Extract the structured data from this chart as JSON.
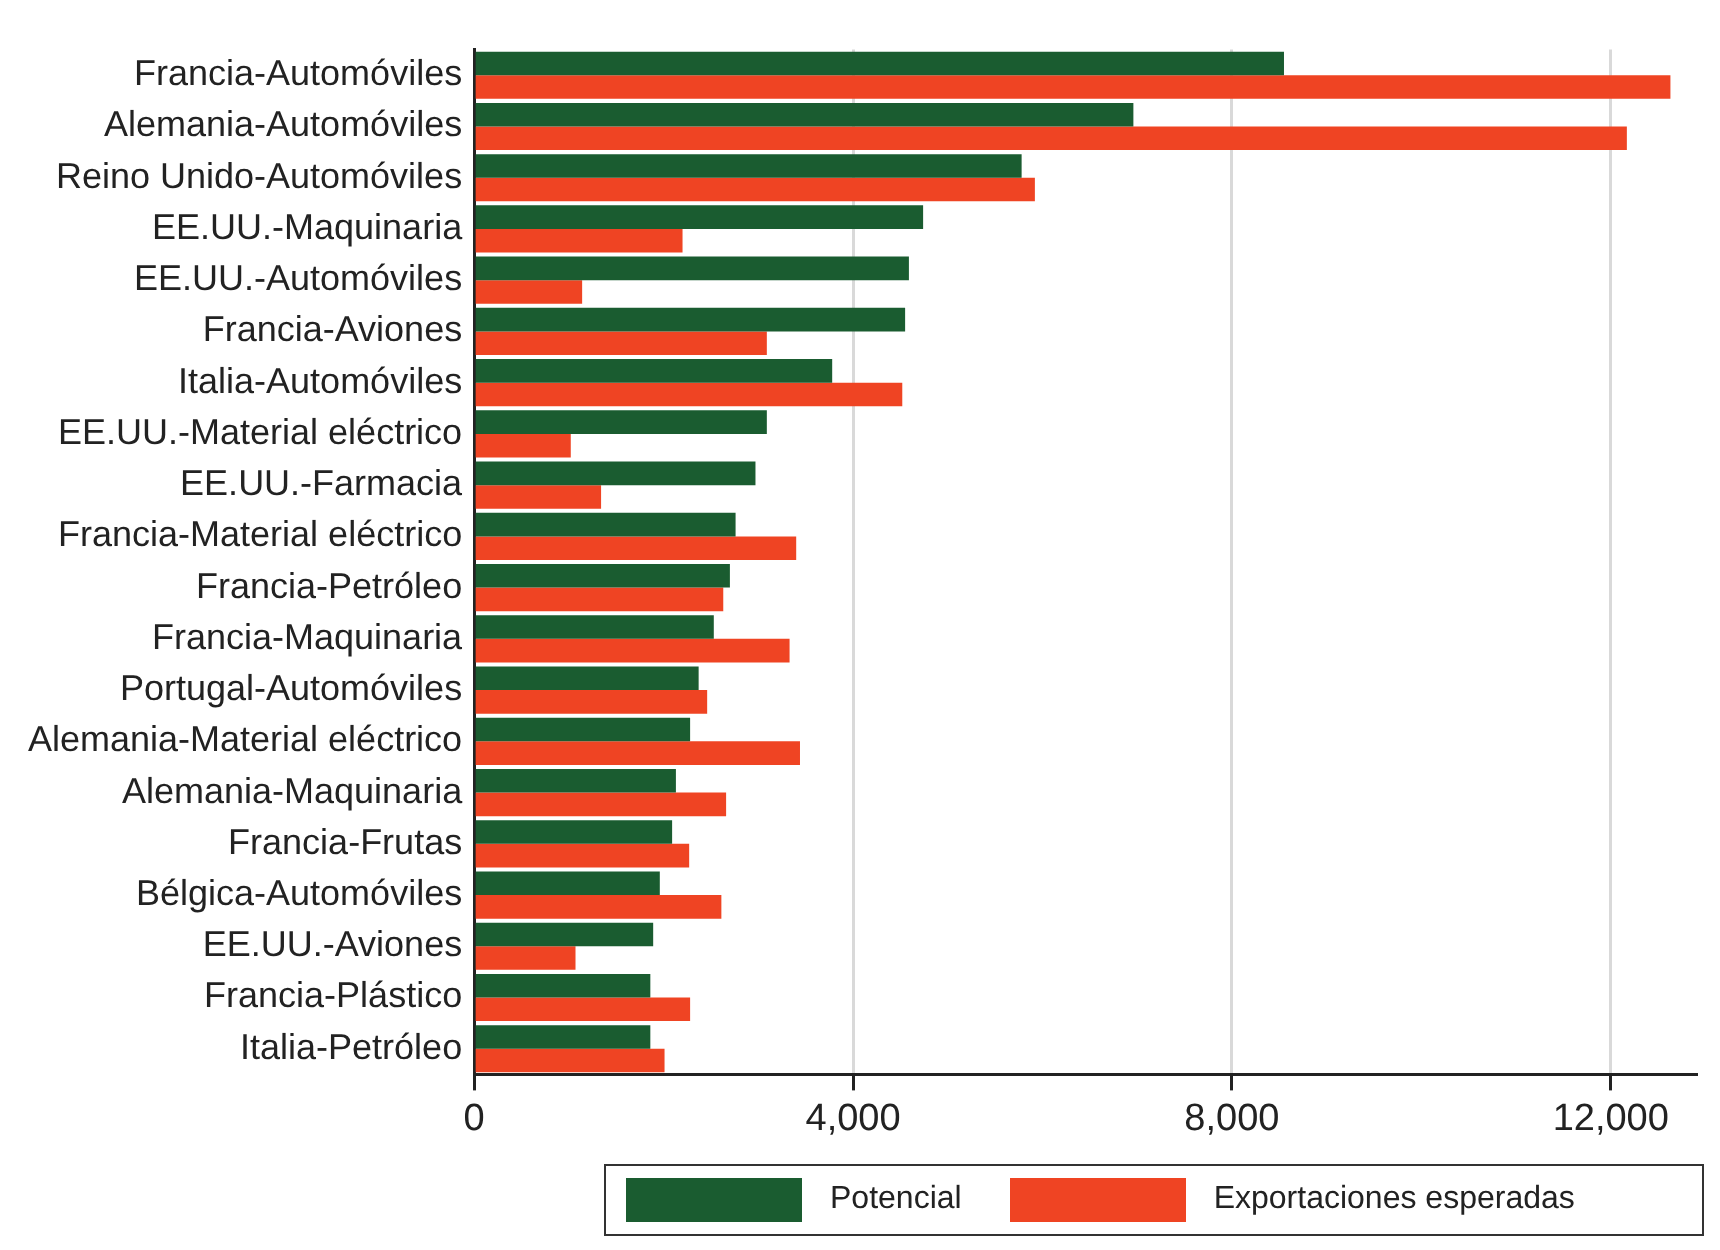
{
  "chart_data": {
    "type": "bar",
    "orientation": "horizontal",
    "categories": [
      "Francia-Automóviles",
      "Alemania-Automóviles",
      "Reino Unido-Automóviles",
      "EE.UU.-Maquinaria",
      "EE.UU.-Automóviles",
      "Francia-Aviones",
      "Italia-Automóviles",
      "EE.UU.-Material eléctrico",
      "EE.UU.-Farmacia",
      "Francia-Material eléctrico",
      "Francia-Petróleo",
      "Francia-Maquinaria",
      "Portugal-Automóviles",
      "Alemania-Material eléctrico",
      "Alemania-Maquinaria",
      "Francia-Frutas",
      "Bélgica-Automóviles",
      "EE.UU.-Aviones",
      "Francia-Plástico",
      "Italia-Petróleo"
    ],
    "series": [
      {
        "name": "Potencial",
        "color": "#1a5c30",
        "values": [
          8550,
          6960,
          5780,
          4740,
          4590,
          4550,
          3780,
          3090,
          2970,
          2760,
          2700,
          2530,
          2370,
          2280,
          2130,
          2090,
          1960,
          1890,
          1860,
          1860
        ]
      },
      {
        "name": "Exportaciones esperadas",
        "color": "#ef4423",
        "values": [
          12630,
          12170,
          5920,
          2200,
          1140,
          3090,
          4520,
          1020,
          1340,
          3400,
          2630,
          3330,
          2460,
          3440,
          2660,
          2270,
          2610,
          1070,
          2280,
          2010
        ]
      }
    ],
    "xlim": [
      0,
      12900
    ],
    "xticks": [
      {
        "value": 0,
        "label": "0"
      },
      {
        "value": 4000,
        "label": "4,000"
      },
      {
        "value": 8000,
        "label": "8,000"
      },
      {
        "value": 12000,
        "label": "12,000"
      }
    ],
    "grid": "x",
    "legend": "bottom"
  }
}
